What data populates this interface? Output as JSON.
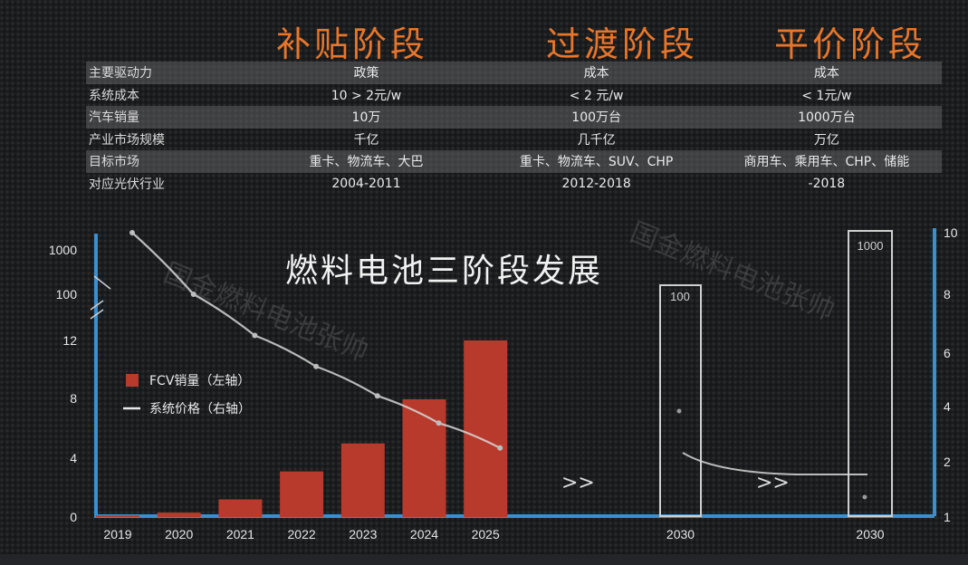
{
  "phases": [
    "补贴阶段",
    "过渡阶段",
    "平价阶段"
  ],
  "table": {
    "rows": [
      {
        "label": "主要驱动力",
        "values": [
          "政策",
          "成本",
          "成本"
        ]
      },
      {
        "label": "系统成本",
        "values": [
          "10 > 2元/w",
          "< 2 元/w",
          "< 1元/w"
        ]
      },
      {
        "label": "汽车销量",
        "values": [
          "10万",
          "100万台",
          "1000万台"
        ]
      },
      {
        "label": "产业市场规模",
        "values": [
          "千亿",
          "几千亿",
          "万亿"
        ]
      },
      {
        "label": "目标市场",
        "values": [
          "重卡、物流车、大巴",
          "重卡、物流车、SUV、CHP",
          "商用车、乘用车、CHP、储能"
        ]
      },
      {
        "label": "对应光伏行业",
        "values": [
          "2004-2011",
          "2012-2018",
          "-2018"
        ]
      }
    ]
  },
  "watermarks": [
    "国金燃料电池张帅",
    "国金燃料电池张帅"
  ],
  "colors": {
    "phase": "#e8762a",
    "bar": "#b83a2c",
    "axis": "#3a8fd0",
    "line": "#d6d6d6"
  },
  "chart_data": {
    "type": "bar",
    "title": "燃料电池三阶段发展",
    "categories": [
      "2019",
      "2020",
      "2021",
      "2022",
      "2023",
      "2024",
      "2025"
    ],
    "series": [
      {
        "name": "FCV销量（左轴）",
        "type": "bar",
        "values": [
          0.1,
          0.3,
          1.2,
          3.1,
          5.0,
          8.0,
          12.0
        ]
      },
      {
        "name": "系统价格（右轴）",
        "type": "line",
        "values": [
          10,
          8,
          6.6,
          5.5,
          4.4,
          3.4,
          2.5
        ]
      }
    ],
    "left_axis_ticks": [
      "0",
      "4",
      "8",
      "12",
      "100",
      "1000"
    ],
    "right_axis_ticks": [
      "1",
      "2",
      "4",
      "6",
      "8",
      "10"
    ],
    "extra": {
      "categories": [
        "2030",
        "2030"
      ],
      "box_labels": [
        "100",
        "1000"
      ],
      "arrows": [
        ">>",
        ">>"
      ]
    },
    "legend": "left-middle"
  }
}
